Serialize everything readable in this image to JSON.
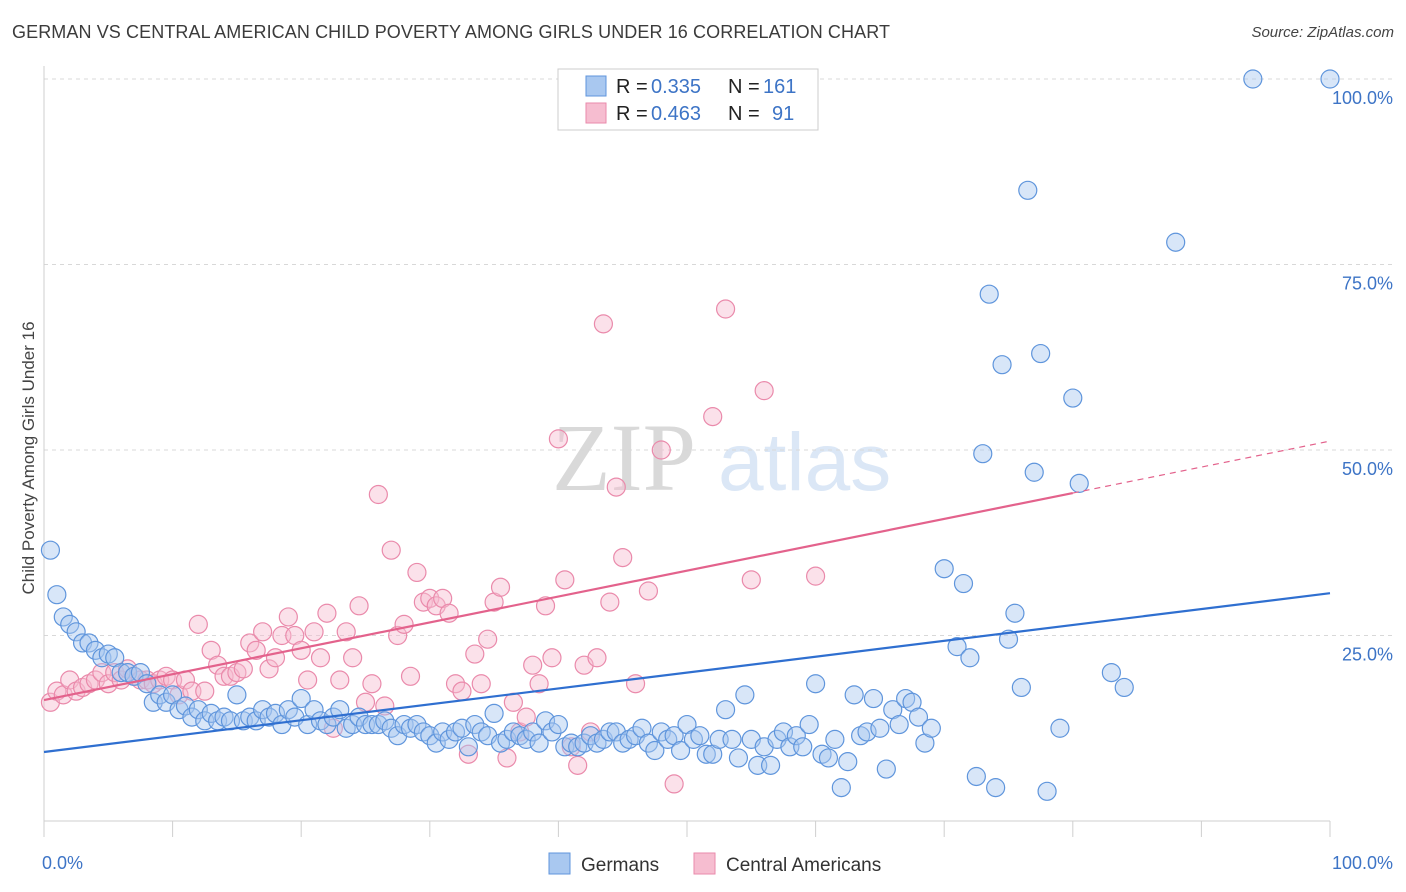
{
  "title": "GERMAN VS CENTRAL AMERICAN CHILD POVERTY AMONG GIRLS UNDER 16 CORRELATION CHART",
  "source": "Source: ZipAtlas.com",
  "watermark": {
    "zip": "ZIP",
    "atlas": "atlas"
  },
  "colors": {
    "blue_fill": "#a9c8f0",
    "blue_stroke": "#5f95dc",
    "blue_line": "#2f6fd0",
    "pink_fill": "#f6bdd0",
    "pink_stroke": "#ea8aab",
    "pink_line": "#e3628c",
    "axis_text": "#3d74c6",
    "grid": "#d8d8d8"
  },
  "legend": {
    "rows": [
      {
        "series": "Germans",
        "r_label": "R =",
        "r_value": "0.335",
        "n_label": "N =",
        "n_value": "161"
      },
      {
        "series": "Central Americans",
        "r_label": "R =",
        "r_value": "0.463",
        "n_label": "N =",
        "n_value": "91"
      }
    ]
  },
  "bottom_legend": [
    "Germans",
    "Central Americans"
  ],
  "chart_data": {
    "type": "scatter",
    "title": "GERMAN VS CENTRAL AMERICAN CHILD POVERTY AMONG GIRLS UNDER 16 CORRELATION CHART",
    "xlabel": "",
    "ylabel": "Child Poverty Among Girls Under 16",
    "xlim": [
      0,
      100
    ],
    "ylim": [
      0,
      100
    ],
    "x_tick_labels": [
      "0.0%",
      "100.0%"
    ],
    "y_ticks": [
      25,
      50,
      75,
      100
    ],
    "y_tick_labels": [
      "25.0%",
      "50.0%",
      "75.0%",
      "100.0%"
    ],
    "series": [
      {
        "name": "Germans",
        "r": 0.335,
        "n": 161,
        "trend": {
          "x": [
            0,
            100
          ],
          "y": [
            9.3,
            30.7
          ]
        },
        "points": [
          [
            0.5,
            36.5
          ],
          [
            1,
            30.5
          ],
          [
            1.5,
            27.5
          ],
          [
            2,
            26.5
          ],
          [
            2.5,
            25.5
          ],
          [
            3,
            24
          ],
          [
            3.5,
            24
          ],
          [
            4,
            23
          ],
          [
            4.5,
            22
          ],
          [
            5,
            22.5
          ],
          [
            5.5,
            22
          ],
          [
            6,
            20
          ],
          [
            6.5,
            20
          ],
          [
            7,
            19.5
          ],
          [
            7.5,
            20
          ],
          [
            8,
            18.5
          ],
          [
            8.5,
            16
          ],
          [
            9,
            17
          ],
          [
            9.5,
            16
          ],
          [
            10,
            17
          ],
          [
            10.5,
            15
          ],
          [
            11,
            15.5
          ],
          [
            11.5,
            14
          ],
          [
            12,
            15
          ],
          [
            12.5,
            13.5
          ],
          [
            13,
            14.5
          ],
          [
            13.5,
            13.5
          ],
          [
            14,
            14
          ],
          [
            14.5,
            13.5
          ],
          [
            15,
            17
          ],
          [
            15.5,
            13.5
          ],
          [
            16,
            14
          ],
          [
            16.5,
            13.5
          ],
          [
            17,
            15
          ],
          [
            17.5,
            14
          ],
          [
            18,
            14.5
          ],
          [
            18.5,
            13
          ],
          [
            19,
            15
          ],
          [
            19.5,
            14
          ],
          [
            20,
            16.5
          ],
          [
            20.5,
            13
          ],
          [
            21,
            15
          ],
          [
            21.5,
            13.5
          ],
          [
            22,
            13
          ],
          [
            22.5,
            14
          ],
          [
            23,
            15
          ],
          [
            23.5,
            12.5
          ],
          [
            24,
            13
          ],
          [
            24.5,
            14
          ],
          [
            25,
            13
          ],
          [
            25.5,
            13
          ],
          [
            26,
            13
          ],
          [
            26.5,
            13.5
          ],
          [
            27,
            12.5
          ],
          [
            27.5,
            11.5
          ],
          [
            28,
            13
          ],
          [
            28.5,
            12.5
          ],
          [
            29,
            13
          ],
          [
            29.5,
            12
          ],
          [
            30,
            11.5
          ],
          [
            30.5,
            10.5
          ],
          [
            31,
            12
          ],
          [
            31.5,
            11
          ],
          [
            32,
            12
          ],
          [
            32.5,
            12.5
          ],
          [
            33,
            10
          ],
          [
            33.5,
            13
          ],
          [
            34,
            12
          ],
          [
            34.5,
            11.5
          ],
          [
            35,
            14.5
          ],
          [
            35.5,
            10.5
          ],
          [
            36,
            11
          ],
          [
            36.5,
            12
          ],
          [
            37,
            11.5
          ],
          [
            37.5,
            11
          ],
          [
            38,
            12
          ],
          [
            38.5,
            10.5
          ],
          [
            39,
            13.5
          ],
          [
            39.5,
            12
          ],
          [
            40,
            13
          ],
          [
            40.5,
            10
          ],
          [
            41,
            10.5
          ],
          [
            41.5,
            10
          ],
          [
            42,
            10.5
          ],
          [
            42.5,
            11.5
          ],
          [
            43,
            10.5
          ],
          [
            43.5,
            11
          ],
          [
            44,
            12
          ],
          [
            44.5,
            12
          ],
          [
            45,
            10.5
          ],
          [
            45.5,
            11
          ],
          [
            46,
            11.5
          ],
          [
            46.5,
            12.5
          ],
          [
            47,
            10.5
          ],
          [
            47.5,
            9.5
          ],
          [
            48,
            12
          ],
          [
            48.5,
            11
          ],
          [
            49,
            11.5
          ],
          [
            49.5,
            9.5
          ],
          [
            50,
            13
          ],
          [
            50.5,
            11
          ],
          [
            51,
            11.5
          ],
          [
            51.5,
            9
          ],
          [
            52,
            9
          ],
          [
            52.5,
            11
          ],
          [
            53,
            15
          ],
          [
            53.5,
            11
          ],
          [
            54,
            8.5
          ],
          [
            54.5,
            17
          ],
          [
            55,
            11
          ],
          [
            55.5,
            7.5
          ],
          [
            56,
            10
          ],
          [
            56.5,
            7.5
          ],
          [
            57,
            11
          ],
          [
            57.5,
            12
          ],
          [
            58,
            10
          ],
          [
            58.5,
            11.5
          ],
          [
            59,
            10
          ],
          [
            59.5,
            13
          ],
          [
            60,
            18.5
          ],
          [
            60.5,
            9
          ],
          [
            61,
            8.5
          ],
          [
            61.5,
            11
          ],
          [
            62,
            4.5
          ],
          [
            62.5,
            8
          ],
          [
            63,
            17
          ],
          [
            63.5,
            11.5
          ],
          [
            64,
            12
          ],
          [
            64.5,
            16.5
          ],
          [
            65,
            12.5
          ],
          [
            65.5,
            7
          ],
          [
            66,
            15
          ],
          [
            66.5,
            13
          ],
          [
            67,
            16.5
          ],
          [
            67.5,
            16
          ],
          [
            68,
            14
          ],
          [
            68.5,
            10.5
          ],
          [
            69,
            12.5
          ],
          [
            70,
            34
          ],
          [
            71,
            23.5
          ],
          [
            71.5,
            32
          ],
          [
            72,
            22
          ],
          [
            72.5,
            6
          ],
          [
            73,
            49.5
          ],
          [
            73.5,
            71
          ],
          [
            74,
            4.5
          ],
          [
            74.5,
            61.5
          ],
          [
            75,
            24.5
          ],
          [
            75.5,
            28
          ],
          [
            76,
            18
          ],
          [
            76.5,
            85
          ],
          [
            77,
            47
          ],
          [
            77.5,
            63
          ],
          [
            78,
            4
          ],
          [
            79,
            12.5
          ],
          [
            80,
            57
          ],
          [
            80.5,
            45.5
          ],
          [
            83,
            20
          ],
          [
            84,
            18
          ],
          [
            88,
            78
          ],
          [
            94,
            100
          ],
          [
            100,
            100
          ]
        ]
      },
      {
        "name": "Central Americans",
        "r": 0.463,
        "n": 91,
        "trend": {
          "x": [
            0,
            80
          ],
          "y": [
            16.3,
            44.2
          ]
        },
        "trend_dashed": {
          "x": [
            80,
            100
          ],
          "y": [
            44.2,
            51.2
          ]
        },
        "points": [
          [
            0.5,
            16
          ],
          [
            1,
            17.5
          ],
          [
            1.5,
            17
          ],
          [
            2,
            19
          ],
          [
            2.5,
            17.5
          ],
          [
            3,
            18
          ],
          [
            3.5,
            18.5
          ],
          [
            4,
            19
          ],
          [
            4.5,
            20
          ],
          [
            5,
            18.5
          ],
          [
            5.5,
            20
          ],
          [
            6,
            19
          ],
          [
            6.5,
            20.5
          ],
          [
            7,
            19.5
          ],
          [
            7.5,
            19
          ],
          [
            8,
            19
          ],
          [
            8.5,
            18.5
          ],
          [
            9,
            19
          ],
          [
            9.5,
            19.5
          ],
          [
            10,
            19
          ],
          [
            10.5,
            17
          ],
          [
            11,
            19
          ],
          [
            11.5,
            17.5
          ],
          [
            12,
            26.5
          ],
          [
            12.5,
            17.5
          ],
          [
            13,
            23
          ],
          [
            13.5,
            21
          ],
          [
            14,
            19.5
          ],
          [
            14.5,
            19.5
          ],
          [
            15,
            20
          ],
          [
            15.5,
            20.5
          ],
          [
            16,
            24
          ],
          [
            16.5,
            23
          ],
          [
            17,
            25.5
          ],
          [
            17.5,
            20.5
          ],
          [
            18,
            22
          ],
          [
            18.5,
            25
          ],
          [
            19,
            27.5
          ],
          [
            19.5,
            25
          ],
          [
            20,
            23
          ],
          [
            20.5,
            19
          ],
          [
            21,
            25.5
          ],
          [
            21.5,
            22
          ],
          [
            22,
            28
          ],
          [
            22.5,
            12.5
          ],
          [
            23,
            19
          ],
          [
            23.5,
            25.5
          ],
          [
            24,
            22
          ],
          [
            24.5,
            29
          ],
          [
            25,
            16
          ],
          [
            25.5,
            18.5
          ],
          [
            26,
            44
          ],
          [
            26.5,
            15.5
          ],
          [
            27,
            36.5
          ],
          [
            27.5,
            25
          ],
          [
            28,
            26.5
          ],
          [
            28.5,
            19.5
          ],
          [
            29,
            33.5
          ],
          [
            29.5,
            29.5
          ],
          [
            30,
            30
          ],
          [
            30.5,
            29
          ],
          [
            31,
            30
          ],
          [
            31.5,
            28
          ],
          [
            32,
            18.5
          ],
          [
            32.5,
            17.5
          ],
          [
            33,
            9
          ],
          [
            33.5,
            22.5
          ],
          [
            34,
            18.5
          ],
          [
            34.5,
            24.5
          ],
          [
            35,
            29.5
          ],
          [
            35.5,
            31.5
          ],
          [
            36,
            8.5
          ],
          [
            36.5,
            16
          ],
          [
            37,
            12
          ],
          [
            37.5,
            14
          ],
          [
            38,
            21
          ],
          [
            38.5,
            18.5
          ],
          [
            39,
            29
          ],
          [
            39.5,
            22
          ],
          [
            40,
            51.5
          ],
          [
            40.5,
            32.5
          ],
          [
            41,
            10
          ],
          [
            41.5,
            7.5
          ],
          [
            42,
            21
          ],
          [
            42.5,
            12
          ],
          [
            43,
            22
          ],
          [
            43.5,
            67
          ],
          [
            44,
            29.5
          ],
          [
            44.5,
            45
          ],
          [
            45,
            35.5
          ],
          [
            46,
            18.5
          ],
          [
            47,
            31
          ],
          [
            48,
            50
          ],
          [
            49,
            5
          ],
          [
            52,
            54.5
          ],
          [
            53,
            69
          ],
          [
            55,
            32.5
          ],
          [
            56,
            58
          ],
          [
            60,
            33
          ]
        ]
      }
    ]
  }
}
